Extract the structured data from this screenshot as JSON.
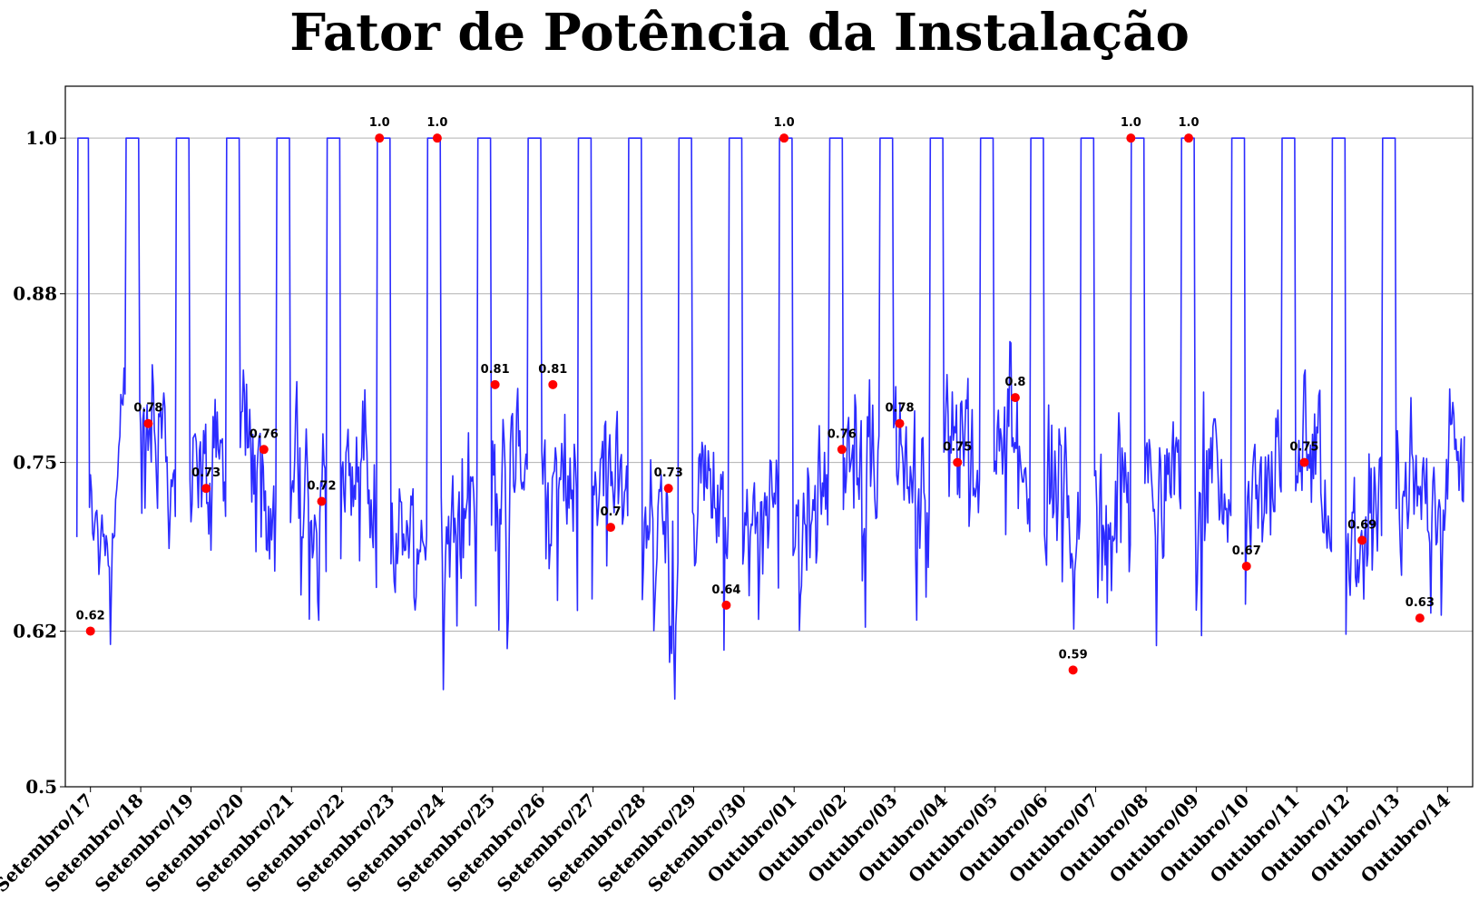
{
  "chart_data": {
    "type": "line",
    "title": "Fator de Potência da Instalação",
    "xlabel": "",
    "ylabel": "",
    "ylim": [
      0.5,
      1.04
    ],
    "yticks": [
      0.5,
      0.62,
      0.75,
      0.88,
      1.0
    ],
    "ytick_labels": [
      "0.5",
      "0.62",
      "0.75",
      "0.88",
      "1.0"
    ],
    "x_range_days": [
      -0.5,
      27.5
    ],
    "x_categories": [
      "Setembro/17",
      "Setembro/18",
      "Setembro/19",
      "Setembro/20",
      "Setembro/21",
      "Setembro/22",
      "Setembro/23",
      "Setembro/24",
      "Setembro/25",
      "Setembro/26",
      "Setembro/27",
      "Setembro/28",
      "Setembro/29",
      "Setembro/30",
      "Outubro/01",
      "Outubro/02",
      "Outubro/03",
      "Outubro/04",
      "Outubro/05",
      "Outubro/06",
      "Outubro/07",
      "Outubro/08",
      "Outubro/09",
      "Outubro/10",
      "Outubro/11",
      "Outubro/12",
      "Outubro/13",
      "Outubro/14"
    ],
    "grid": true,
    "series": [
      {
        "color": "#2b2bff",
        "description": "hourly power factor, saturates at 1.0 in nightly windows",
        "plateaus": [
          [
            -0.25,
            -0.02
          ],
          [
            0.7,
            0.97
          ],
          [
            1.7,
            1.97
          ],
          [
            2.7,
            2.97
          ],
          [
            3.7,
            3.97
          ],
          [
            4.7,
            4.97
          ],
          [
            5.7,
            5.97
          ],
          [
            6.7,
            6.97
          ],
          [
            7.7,
            7.97
          ],
          [
            8.7,
            8.97
          ],
          [
            9.7,
            9.97
          ],
          [
            10.7,
            10.97
          ],
          [
            11.7,
            11.97
          ],
          [
            12.7,
            12.97
          ],
          [
            13.7,
            13.97
          ],
          [
            14.7,
            14.97
          ],
          [
            15.7,
            15.97
          ],
          [
            16.7,
            16.97
          ],
          [
            17.7,
            17.97
          ],
          [
            18.7,
            18.97
          ],
          [
            19.7,
            19.97
          ],
          [
            20.7,
            20.97
          ],
          [
            21.7,
            21.97
          ],
          [
            22.7,
            22.97
          ],
          [
            23.7,
            23.97
          ],
          [
            24.7,
            24.97
          ],
          [
            25.7,
            25.97
          ]
        ],
        "daily_daytime_level": [
          0.7,
          0.77,
          0.74,
          0.76,
          0.73,
          0.74,
          0.68,
          0.7,
          0.74,
          0.74,
          0.73,
          0.71,
          0.72,
          0.69,
          0.71,
          0.74,
          0.75,
          0.76,
          0.76,
          0.73,
          0.7,
          0.74,
          0.73,
          0.71,
          0.74,
          0.69,
          0.71,
          0.74
        ]
      }
    ],
    "daily_markers": {
      "color": "#ff0000",
      "points": [
        {
          "x": 0.0,
          "y": 0.62,
          "label": "0.62"
        },
        {
          "x": 1.15,
          "y": 0.78,
          "label": "0.78"
        },
        {
          "x": 2.3,
          "y": 0.73,
          "label": "0.73"
        },
        {
          "x": 3.45,
          "y": 0.76,
          "label": "0.76"
        },
        {
          "x": 4.6,
          "y": 0.72,
          "label": "0.72"
        },
        {
          "x": 5.75,
          "y": 1.0,
          "label": "1.0"
        },
        {
          "x": 6.9,
          "y": 1.0,
          "label": "1.0"
        },
        {
          "x": 8.05,
          "y": 0.81,
          "label": "0.81"
        },
        {
          "x": 9.2,
          "y": 0.81,
          "label": "0.81"
        },
        {
          "x": 10.35,
          "y": 0.7,
          "label": "0.7"
        },
        {
          "x": 11.5,
          "y": 0.73,
          "label": "0.73"
        },
        {
          "x": 12.65,
          "y": 0.64,
          "label": "0.64"
        },
        {
          "x": 13.8,
          "y": 1.0,
          "label": "1.0"
        },
        {
          "x": 14.95,
          "y": 0.76,
          "label": "0.76"
        },
        {
          "x": 16.1,
          "y": 0.78,
          "label": "0.78"
        },
        {
          "x": 17.25,
          "y": 0.75,
          "label": "0.75"
        },
        {
          "x": 18.4,
          "y": 0.8,
          "label": "0.8"
        },
        {
          "x": 19.55,
          "y": 0.59,
          "label": "0.59"
        },
        {
          "x": 20.7,
          "y": 1.0,
          "label": "1.0"
        },
        {
          "x": 21.85,
          "y": 1.0,
          "label": "1.0"
        },
        {
          "x": 23.0,
          "y": 0.67,
          "label": "0.67"
        },
        {
          "x": 24.15,
          "y": 0.75,
          "label": "0.75"
        },
        {
          "x": 25.3,
          "y": 0.69,
          "label": "0.69"
        },
        {
          "x": 26.45,
          "y": 0.63,
          "label": "0.63"
        }
      ]
    }
  }
}
